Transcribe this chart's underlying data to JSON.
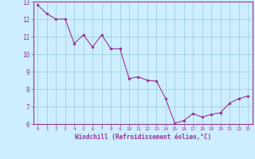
{
  "x": [
    0,
    1,
    2,
    3,
    4,
    5,
    6,
    7,
    8,
    9,
    10,
    11,
    12,
    13,
    14,
    15,
    16,
    17,
    18,
    19,
    20,
    21,
    22,
    23
  ],
  "y": [
    12.8,
    12.3,
    12.0,
    12.0,
    10.6,
    11.1,
    10.4,
    11.1,
    10.3,
    10.3,
    8.6,
    8.7,
    8.5,
    8.45,
    7.45,
    6.05,
    6.2,
    6.6,
    6.4,
    6.55,
    6.65,
    7.2,
    7.45,
    7.6
  ],
  "line_color": "#993399",
  "marker_color": "#993399",
  "bg_color": "#cceeff",
  "grid_color": "#99cccc",
  "axis_color": "#993399",
  "tick_color": "#993399",
  "xlabel": "Windchill (Refroidissement éolien,°C)",
  "ylim": [
    6,
    13
  ],
  "xlim": [
    -0.5,
    23.5
  ],
  "yticks": [
    6,
    7,
    8,
    9,
    10,
    11,
    12,
    13
  ],
  "xticks": [
    0,
    1,
    2,
    3,
    4,
    5,
    6,
    7,
    8,
    9,
    10,
    11,
    12,
    13,
    14,
    15,
    16,
    17,
    18,
    19,
    20,
    21,
    22,
    23
  ]
}
